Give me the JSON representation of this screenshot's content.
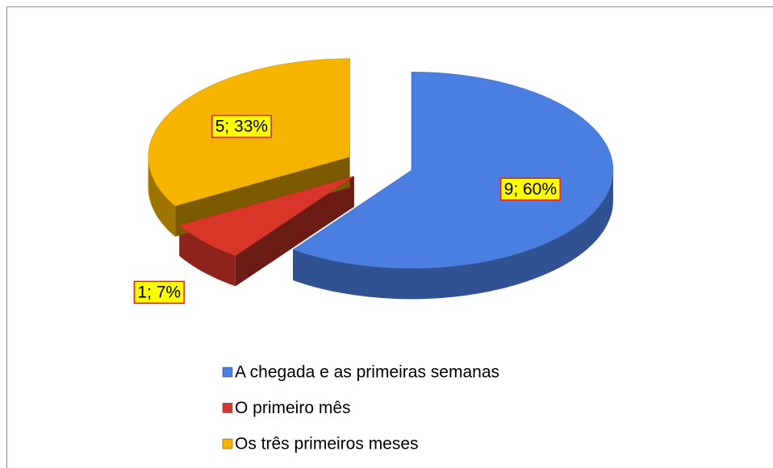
{
  "chart_data": {
    "type": "pie3d",
    "categories": [
      "A chegada e as primeiras semanas",
      "O primeiro mês",
      "Os três primeiros meses"
    ],
    "values": [
      9,
      1,
      5
    ],
    "value_labels": [
      "9; 60%",
      "1; 7%",
      "5; 33%"
    ],
    "colors": [
      "#4a7ee0",
      "#d9362a",
      "#f5b400"
    ],
    "legend": "bottom"
  }
}
